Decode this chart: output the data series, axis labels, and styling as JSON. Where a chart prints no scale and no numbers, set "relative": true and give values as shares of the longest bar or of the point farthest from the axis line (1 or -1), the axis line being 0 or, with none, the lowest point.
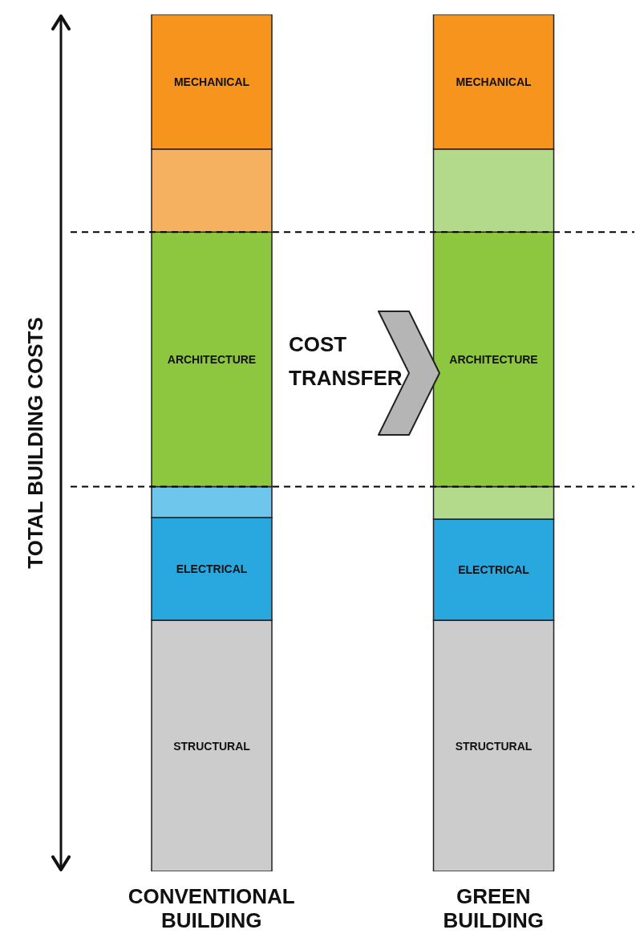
{
  "chart_data": {
    "type": "bar",
    "stacked": true,
    "relative": true,
    "legend": false,
    "ylabel": "TOTAL BUILDING COSTS",
    "categories": [
      "CONVENTIONAL BUILDING",
      "GREEN BUILDING"
    ],
    "series": [
      {
        "name": "STRUCTURAL",
        "color": "#cccccc",
        "values": [
          0.293,
          0.293
        ]
      },
      {
        "name": "ELECTRICAL",
        "color": "#29a8e0",
        "values": [
          0.12,
          0.118
        ]
      },
      {
        "colors": [
          "#6ec6ed",
          "#b3d98b"
        ],
        "values": [
          0.036,
          0.038
        ]
      },
      {
        "name": "ARCHITECTURE",
        "color": "#8dc63f",
        "values": [
          0.297,
          0.297
        ]
      },
      {
        "colors": [
          "#f6b160",
          "#b3d98b"
        ],
        "values": [
          0.097,
          0.097
        ]
      },
      {
        "name": "MECHANICAL",
        "color": "#f7941d",
        "values": [
          0.157,
          0.157
        ]
      }
    ],
    "ref_lines": [
      {
        "axis": "y",
        "value": 0.449,
        "line_style": "dashed",
        "color": "#000000"
      },
      {
        "axis": "y",
        "value": 0.746,
        "line_style": "dashed",
        "color": "#000000"
      }
    ],
    "annotations": [
      "COST TRANSFER"
    ]
  }
}
